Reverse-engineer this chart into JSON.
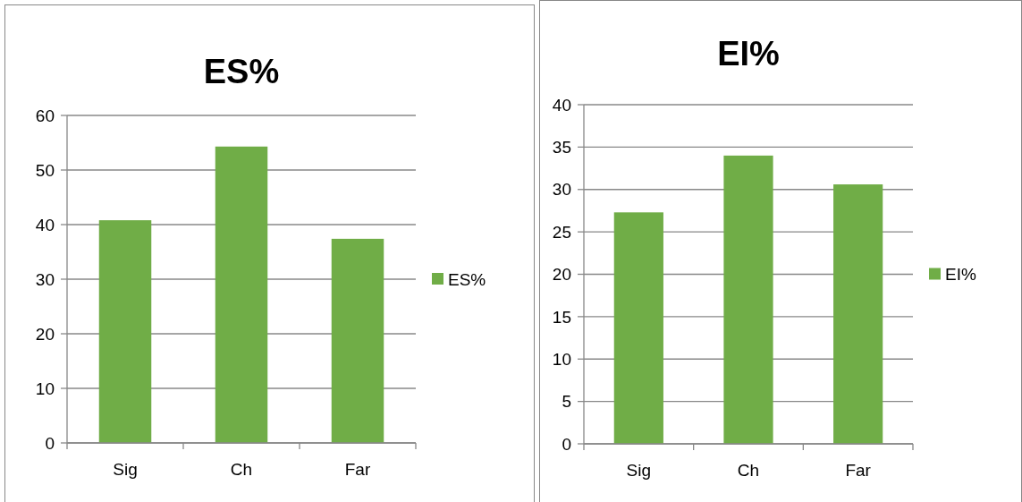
{
  "chart_data": [
    {
      "type": "bar",
      "title": "ES%",
      "categories": [
        "Sig",
        "Ch",
        "Far"
      ],
      "series": [
        {
          "name": "ES%",
          "color": "#70ad47",
          "values": [
            40.8,
            54.3,
            37.4
          ]
        }
      ],
      "ylim": [
        0,
        60
      ],
      "yticks": [
        0,
        10,
        20,
        30,
        40,
        50,
        60
      ],
      "grid": "y",
      "legend": "right"
    },
    {
      "type": "bar",
      "title": "EI%",
      "categories": [
        "Sig",
        "Ch",
        "Far"
      ],
      "series": [
        {
          "name": "EI%",
          "color": "#70ad47",
          "values": [
            27.3,
            34.0,
            30.6
          ]
        }
      ],
      "ylim": [
        0,
        40
      ],
      "yticks": [
        0,
        5,
        10,
        15,
        20,
        25,
        30,
        35,
        40
      ],
      "grid": "y",
      "legend": "right"
    }
  ]
}
